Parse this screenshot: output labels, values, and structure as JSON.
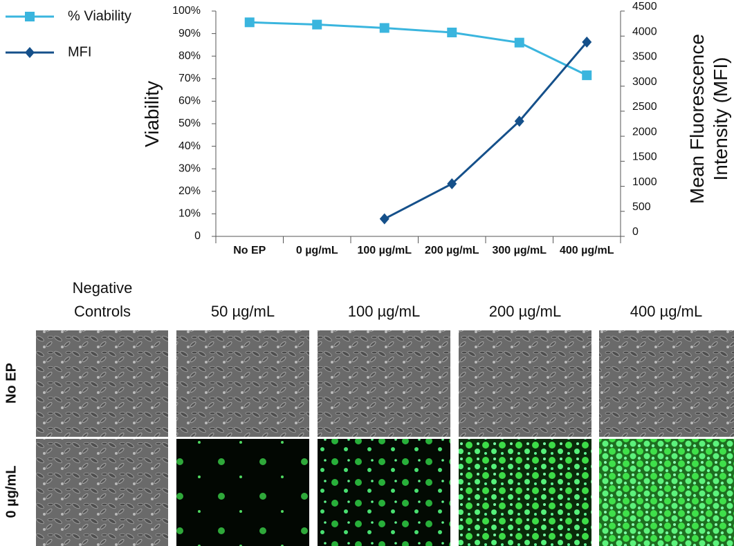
{
  "chart_data": {
    "type": "line",
    "categories": [
      "No EP",
      "0 µg/mL",
      "100 µg/mL",
      "200 µg/mL",
      "300 µg/mL",
      "400 µg/mL"
    ],
    "series": [
      {
        "name": "% Viability",
        "color": "#3ab5de",
        "marker": "square",
        "values": [
          95,
          94,
          92.5,
          90.5,
          86,
          71.5
        ]
      },
      {
        "name": "MFI",
        "color": "#15508a",
        "marker": "diamond",
        "axis": "y2",
        "values": [
          null,
          null,
          350,
          1050,
          2300,
          3880
        ]
      }
    ],
    "y_label": "Viability",
    "y2_label": "Mean Fluorescence Intensity (MFI)",
    "ylim": [
      0,
      100
    ],
    "yticks": [
      0,
      {
        "value": 10,
        "label": "10%"
      },
      {
        "value": 20,
        "label": "20%"
      },
      {
        "value": 30,
        "label": "30%"
      },
      {
        "value": 40,
        "label": "40%"
      },
      {
        "value": 50,
        "label": "50%"
      },
      {
        "value": 60,
        "label": "60%"
      },
      {
        "value": 70,
        "label": "70%"
      },
      {
        "value": 80,
        "label": "80%"
      },
      {
        "value": 90,
        "label": "90%"
      },
      {
        "value": 100,
        "label": "100%"
      }
    ],
    "y2lim": [
      0,
      4500
    ],
    "y2ticks": [
      0,
      500,
      1000,
      1500,
      2000,
      2500,
      3000,
      3500,
      4000,
      4500
    ]
  },
  "micrographs": {
    "columns": [
      "Negative Controls",
      "50 µg/mL",
      "100 µg/mL",
      "200 µg/mL",
      "400 µg/mL"
    ],
    "rows": [
      "No EP",
      "0 µg/mL"
    ]
  }
}
